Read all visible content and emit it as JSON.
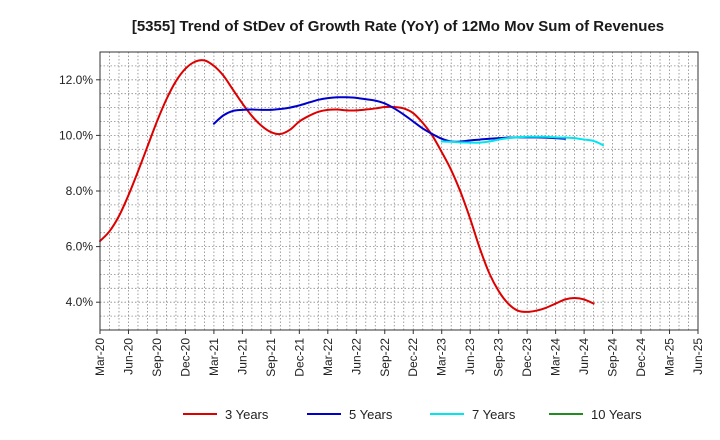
{
  "chart_data": {
    "type": "line",
    "title": "[5355]  Trend of StDev of Growth Rate (YoY) of 12Mo Mov Sum of Revenues",
    "xlabel": "",
    "ylabel": "",
    "x_ticks": [
      "Mar-20",
      "Jun-20",
      "Sep-20",
      "Dec-20",
      "Mar-21",
      "Jun-21",
      "Sep-21",
      "Dec-21",
      "Mar-22",
      "Jun-22",
      "Sep-22",
      "Dec-22",
      "Mar-23",
      "Jun-23",
      "Sep-23",
      "Dec-23",
      "Mar-24",
      "Jun-24",
      "Sep-24",
      "Dec-24",
      "Mar-25",
      "Jun-25"
    ],
    "y_ticks": [
      4.0,
      6.0,
      8.0,
      10.0,
      12.0
    ],
    "y_tick_labels": [
      "4.0%",
      "6.0%",
      "8.0%",
      "10.0%",
      "12.0%"
    ],
    "ylim": [
      3.0,
      13.0
    ],
    "grid": true,
    "legend_position": "bottom",
    "series": [
      {
        "name": "3 Years",
        "color": "#dd0000",
        "start_index": 0,
        "values": [
          6.2,
          6.55,
          7.1,
          7.85,
          8.7,
          9.6,
          10.5,
          11.3,
          11.95,
          12.4,
          12.65,
          12.7,
          12.5,
          12.15,
          11.65,
          11.15,
          10.7,
          10.35,
          10.12,
          10.05,
          10.2,
          10.5,
          10.7,
          10.85,
          10.92,
          10.93,
          10.9,
          10.9,
          10.93,
          10.97,
          11.02,
          11.02,
          10.97,
          10.8,
          10.45,
          10.0,
          9.4,
          8.75,
          7.95,
          7.0,
          5.95,
          5.05,
          4.4,
          3.95,
          3.7,
          3.65,
          3.7,
          3.8,
          3.95,
          4.1,
          4.15,
          4.1,
          3.95
        ]
      },
      {
        "name": "5 Years",
        "color": "#0000cc",
        "start_index": 12,
        "values": [
          10.42,
          10.72,
          10.88,
          10.92,
          10.93,
          10.92,
          10.92,
          10.95,
          11.0,
          11.08,
          11.18,
          11.28,
          11.34,
          11.37,
          11.37,
          11.35,
          11.3,
          11.25,
          11.15,
          10.97,
          10.75,
          10.5,
          10.25,
          10.05,
          9.88,
          9.78,
          9.78,
          9.82,
          9.85,
          9.88,
          9.9,
          9.92,
          9.93,
          9.93,
          9.93,
          9.92,
          9.9,
          9.88
        ]
      },
      {
        "name": "7 Years",
        "color": "#00e5ee",
        "start_index": 36,
        "values": [
          9.78,
          9.77,
          9.75,
          9.74,
          9.74,
          9.78,
          9.85,
          9.9,
          9.93,
          9.95,
          9.95,
          9.95,
          9.93,
          9.92,
          9.9,
          9.85,
          9.8,
          9.65
        ]
      },
      {
        "name": "10 Years",
        "color": "#228b22",
        "start_index": 0,
        "values": []
      }
    ]
  }
}
